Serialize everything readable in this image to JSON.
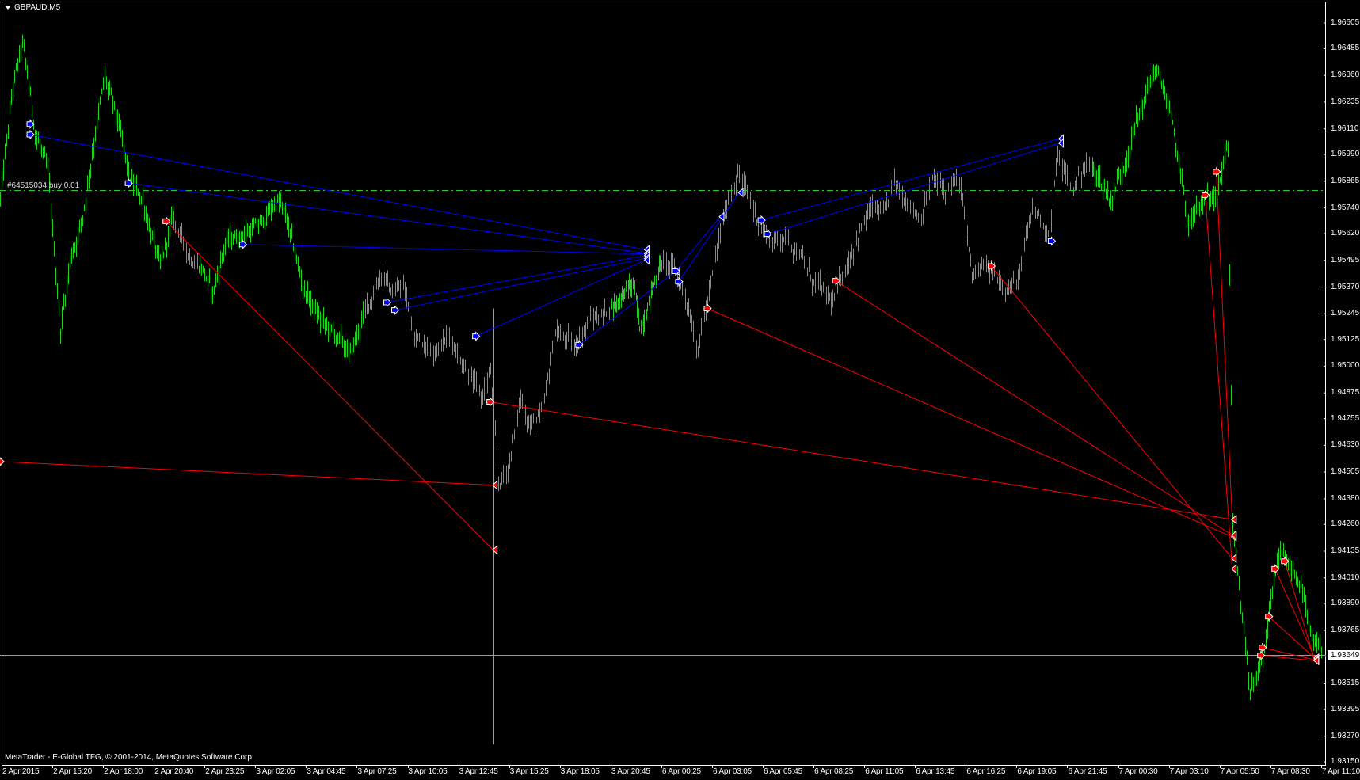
{
  "window": {
    "title": "GBPAUD,M5",
    "menu_icon": "triangle-down-icon"
  },
  "order_line": {
    "label": "#64515034 buy 0.01",
    "price": 1.95824,
    "color": "#22cc22"
  },
  "bid": {
    "price": 1.93649,
    "label": "1.93649",
    "color": "#9a9a9a"
  },
  "footer": "MetaTrader - E-Global TFG, © 2001-2014, MetaQuotes Software Corp.",
  "chart_data": {
    "type": "ohlc",
    "symbol": "GBPAUD",
    "timeframe": "M5",
    "ylim": [
      1.93139,
      1.96712
    ],
    "grid": false,
    "colors": {
      "bars": "#22d022",
      "buy_lines": "#0000ff",
      "sell_lines": "#ff0000",
      "background": "#000000",
      "axis": "#ffffff"
    },
    "y_ticks": [
      "1.96605",
      "1.96485",
      "1.96360",
      "1.96235",
      "1.96110",
      "1.95990",
      "1.95865",
      "1.95740",
      "1.95620",
      "1.95495",
      "1.95370",
      "1.95245",
      "1.95125",
      "1.95000",
      "1.94875",
      "1.94755",
      "1.94630",
      "1.94505",
      "1.94380",
      "1.94260",
      "1.94135",
      "1.94010",
      "1.93890",
      "1.93765",
      "1.93515",
      "1.93395",
      "1.93270",
      "1.93150"
    ],
    "x_ticks": [
      "2 Apr 2015",
      "2 Apr 15:20",
      "2 Apr 18:00",
      "2 Apr 20:40",
      "2 Apr 23:25",
      "3 Apr 02:05",
      "3 Apr 04:45",
      "3 Apr 07:25",
      "3 Apr 10:05",
      "3 Apr 12:45",
      "3 Apr 15:25",
      "3 Apr 18:05",
      "3 Apr 20:45",
      "6 Apr 00:25",
      "6 Apr 03:05",
      "6 Apr 05:45",
      "6 Apr 08:25",
      "6 Apr 11:05",
      "6 Apr 13:45",
      "6 Apr 16:25",
      "6 Apr 19:05",
      "6 Apr 21:45",
      "7 Apr 00:30",
      "7 Apr 03:10",
      "7 Apr 05:50",
      "7 Apr 08:30",
      "7 Apr 11:10"
    ],
    "price_path": [
      [
        "2 Apr 12:35",
        1.9578
      ],
      [
        "2 Apr 13:15",
        1.96306
      ],
      [
        "2 Apr 13:45",
        1.96508
      ],
      [
        "2 Apr 14:25",
        1.96103
      ],
      [
        "2 Apr 15:05",
        1.95901
      ],
      [
        "2 Apr 15:45",
        1.95173
      ],
      [
        "2 Apr 16:15",
        1.95496
      ],
      [
        "2 Apr 16:55",
        1.95699
      ],
      [
        "2 Apr 17:35",
        1.96103
      ],
      [
        "2 Apr 18:05",
        1.96346
      ],
      [
        "2 Apr 18:45",
        1.96144
      ],
      [
        "2 Apr 19:25",
        1.95861
      ],
      [
        "2 Apr 20:05",
        1.9578
      ],
      [
        "2 Apr 21:00",
        1.95456
      ],
      [
        "2 Apr 21:40",
        1.95699
      ],
      [
        "2 Apr 22:25",
        1.95537
      ],
      [
        "2 Apr 23:20",
        1.95456
      ],
      [
        "2 Apr 23:50",
        1.95335
      ],
      [
        "3 Apr 00:30",
        1.95577
      ],
      [
        "3 Apr 01:25",
        1.95618
      ],
      [
        "3 Apr 02:20",
        1.95658
      ],
      [
        "3 Apr 03:15",
        1.9578
      ],
      [
        "3 Apr 03:40",
        1.95699
      ],
      [
        "3 Apr 04:35",
        1.95375
      ],
      [
        "3 Apr 05:30",
        1.95213
      ],
      [
        "3 Apr 06:25",
        1.95132
      ],
      [
        "3 Apr 07:05",
        1.95051
      ],
      [
        "3 Apr 07:50",
        1.95254
      ],
      [
        "3 Apr 08:45",
        1.95456
      ],
      [
        "3 Apr 09:10",
        1.95335
      ],
      [
        "3 Apr 09:50",
        1.95375
      ],
      [
        "3 Apr 10:30",
        1.95132
      ],
      [
        "3 Apr 11:25",
        1.95092
      ],
      [
        "3 Apr 12:20",
        1.95132
      ],
      [
        "3 Apr 13:15",
        1.9497
      ],
      [
        "3 Apr 13:55",
        1.94849
      ],
      [
        "3 Apr 14:25",
        1.9497
      ],
      [
        "3 Apr 14:50",
        1.94444
      ],
      [
        "3 Apr 15:20",
        1.94525
      ],
      [
        "3 Apr 16:00",
        1.94849
      ],
      [
        "3 Apr 16:30",
        1.94728
      ],
      [
        "3 Apr 17:10",
        1.94768
      ],
      [
        "3 Apr 17:50",
        1.95173
      ],
      [
        "3 Apr 18:45",
        1.95092
      ],
      [
        "3 Apr 19:40",
        1.95213
      ],
      [
        "3 Apr 20:35",
        1.95254
      ],
      [
        "3 Apr 21:30",
        1.95335
      ],
      [
        "3 Apr 22:25",
        1.95375
      ],
      [
        "3 Apr 22:50",
        1.95173
      ],
      [
        "6 Apr 00:25",
        1.95496
      ],
      [
        "6 Apr 01:00",
        1.95456
      ],
      [
        "6 Apr 01:40",
        1.95335
      ],
      [
        "6 Apr 02:20",
        1.95092
      ],
      [
        "6 Apr 02:50",
        1.95294
      ],
      [
        "6 Apr 03:30",
        1.95618
      ],
      [
        "6 Apr 03:55",
        1.9578
      ],
      [
        "6 Apr 04:25",
        1.95901
      ],
      [
        "6 Apr 04:50",
        1.9582
      ],
      [
        "6 Apr 05:35",
        1.95658
      ],
      [
        "6 Apr 06:15",
        1.95577
      ],
      [
        "6 Apr 06:55",
        1.95618
      ],
      [
        "6 Apr 07:35",
        1.95537
      ],
      [
        "6 Apr 08:15",
        1.95415
      ],
      [
        "6 Apr 09:00",
        1.95335
      ],
      [
        "6 Apr 09:25",
        1.95294
      ],
      [
        "6 Apr 10:05",
        1.95456
      ],
      [
        "6 Apr 10:45",
        1.95618
      ],
      [
        "6 Apr 11:30",
        1.95739
      ],
      [
        "6 Apr 12:10",
        1.95699
      ],
      [
        "6 Apr 12:35",
        1.95861
      ],
      [
        "6 Apr 13:20",
        1.9578
      ],
      [
        "6 Apr 14:00",
        1.95699
      ],
      [
        "6 Apr 14:40",
        1.95861
      ],
      [
        "6 Apr 15:20",
        1.9582
      ],
      [
        "6 Apr 15:50",
        1.95861
      ],
      [
        "6 Apr 16:15",
        1.9578
      ],
      [
        "6 Apr 16:45",
        1.95415
      ],
      [
        "6 Apr 17:25",
        1.95456
      ],
      [
        "6 Apr 18:05",
        1.95415
      ],
      [
        "6 Apr 18:45",
        1.95375
      ],
      [
        "6 Apr 19:15",
        1.95415
      ],
      [
        "6 Apr 19:55",
        1.95739
      ],
      [
        "6 Apr 20:20",
        1.95699
      ],
      [
        "6 Apr 20:50",
        1.95618
      ],
      [
        "6 Apr 21:15",
        1.95982
      ],
      [
        "6 Apr 22:00",
        1.9582
      ],
      [
        "6 Apr 22:40",
        1.95941
      ],
      [
        "6 Apr 23:20",
        1.95901
      ],
      [
        "7 Apr 00:05",
        1.9578
      ],
      [
        "7 Apr 00:45",
        1.95941
      ],
      [
        "7 Apr 01:25",
        1.96144
      ],
      [
        "7 Apr 01:55",
        1.96265
      ],
      [
        "7 Apr 02:20",
        1.96387
      ],
      [
        "7 Apr 02:50",
        1.96306
      ],
      [
        "7 Apr 03:15",
        1.96144
      ],
      [
        "7 Apr 03:45",
        1.95901
      ],
      [
        "7 Apr 04:10",
        1.95658
      ],
      [
        "7 Apr 04:40",
        1.95739
      ],
      [
        "7 Apr 05:20",
        1.9578
      ],
      [
        "7 Apr 05:50",
        1.95901
      ],
      [
        "7 Apr 06:15",
        1.96022
      ],
      [
        "7 Apr 06:30",
        1.94283
      ],
      [
        "7 Apr 06:55",
        1.93878
      ],
      [
        "7 Apr 07:25",
        1.93473
      ],
      [
        "7 Apr 08:05",
        1.93635
      ],
      [
        "7 Apr 08:30",
        1.93878
      ],
      [
        "7 Apr 09:00",
        1.94121
      ],
      [
        "7 Apr 09:40",
        1.9404
      ],
      [
        "7 Apr 10:05",
        1.93999
      ],
      [
        "7 Apr 10:35",
        1.93716
      ],
      [
        "7 Apr 11:00",
        1.93676
      ],
      [
        "7 Apr 11:10",
        1.93649
      ]
    ],
    "spike_bars": [
      {
        "time": "3 Apr 14:35",
        "high": 1.9527,
        "low": 1.93231
      }
    ],
    "buy_trades": [
      {
        "open": [
          "2 Apr 14:10",
          1.96083
        ],
        "close": [
          "3 Apr 23:15",
          1.95545
        ]
      },
      {
        "open": [
          "2 Apr 19:20",
          1.95856
        ],
        "close": [
          "3 Apr 23:15",
          1.95529
        ]
      },
      {
        "open": [
          "3 Apr 01:25",
          1.95569
        ],
        "close": [
          "3 Apr 23:15",
          1.95525
        ]
      },
      {
        "open": [
          "3 Apr 09:00",
          1.95298
        ],
        "close": [
          "3 Apr 23:15",
          1.95517
        ]
      },
      {
        "open": [
          "3 Apr 09:25",
          1.95262
        ],
        "close": [
          "3 Apr 23:15",
          1.95504
        ]
      },
      {
        "open": [
          "3 Apr 13:40",
          1.9514
        ],
        "close": [
          "3 Apr 23:15",
          1.95496
        ]
      },
      {
        "open": [
          "3 Apr 19:05",
          1.951
        ],
        "close": [
          "6 Apr 01:10",
          1.95444
        ]
      },
      {
        "open": [
          "6 Apr 01:20",
          1.95395
        ],
        "close": [
          "6 Apr 04:30",
          1.95812
        ]
      },
      {
        "open": [
          "6 Apr 01:10",
          1.95444
        ],
        "close": [
          "6 Apr 03:30",
          1.95699
        ]
      },
      {
        "open": [
          "6 Apr 05:40",
          1.95683
        ],
        "close": [
          "6 Apr 21:20",
          1.96063
        ]
      },
      {
        "open": [
          "6 Apr 06:00",
          1.95618
        ],
        "close": [
          "6 Apr 21:20",
          1.96043
        ]
      },
      {
        "open": [
          "2 Apr 14:10",
          1.96132
        ],
        "close": null
      },
      {
        "open": [
          "6 Apr 20:55",
          1.95585
        ],
        "close": null
      }
    ],
    "sell_trades": [
      {
        "open": [
          "2 Apr 12:35",
          1.94554
        ],
        "close": [
          "3 Apr 14:35",
          1.94444
        ]
      },
      {
        "open": [
          "2 Apr 21:20",
          1.95678
        ],
        "close": [
          "3 Apr 14:35",
          1.94141
        ]
      },
      {
        "open": [
          "3 Apr 14:25",
          1.94833
        ],
        "close": [
          "7 Apr 06:30",
          1.94283
        ]
      },
      {
        "open": [
          "6 Apr 02:50",
          1.9527
        ],
        "close": [
          "7 Apr 06:30",
          1.94202
        ]
      },
      {
        "open": [
          "6 Apr 09:35",
          1.95399
        ],
        "close": [
          "7 Apr 06:30",
          1.9421
        ]
      },
      {
        "open": [
          "6 Apr 17:45",
          1.95468
        ],
        "close": [
          "7 Apr 06:30",
          1.94101
        ]
      },
      {
        "open": [
          "7 Apr 05:05",
          1.958
        ],
        "close": [
          "7 Apr 06:30",
          1.94052
        ]
      },
      {
        "open": [
          "7 Apr 05:40",
          1.95909
        ],
        "close": [
          "7 Apr 06:30",
          1.94283
        ]
      },
      {
        "open": [
          "7 Apr 08:45",
          1.94052
        ],
        "close": [
          "7 Apr 10:50",
          1.93635
        ]
      },
      {
        "open": [
          "7 Apr 09:15",
          1.94088
        ],
        "close": [
          "7 Apr 10:50",
          1.93627
        ]
      },
      {
        "open": [
          "7 Apr 08:25",
          1.93829
        ],
        "close": [
          "7 Apr 10:50",
          1.93635
        ]
      },
      {
        "open": [
          "7 Apr 08:05",
          1.93684
        ],
        "close": [
          "7 Apr 10:50",
          1.93627
        ]
      },
      {
        "open": [
          "7 Apr 08:00",
          1.93647
        ],
        "close": [
          "7 Apr 10:50",
          1.93623
        ]
      }
    ]
  }
}
